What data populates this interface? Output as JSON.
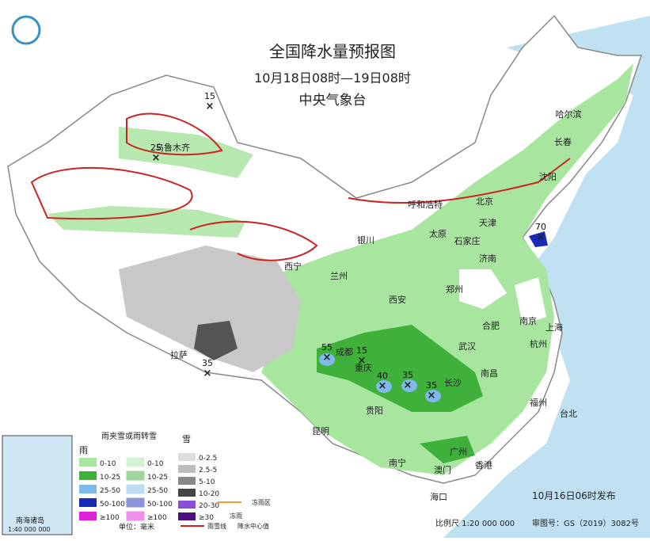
{
  "header": {
    "title": "全国降水量预报图",
    "period": "10月18日08时—19日08时",
    "org": "中央气象台"
  },
  "cities": [
    "乌鲁木齐",
    "哈尔滨",
    "长春",
    "沈阳",
    "呼和浩特",
    "北京",
    "天津",
    "太原",
    "石家庄",
    "济南",
    "银川",
    "西宁",
    "兰州",
    "西安",
    "郑州",
    "合肥",
    "南京",
    "上海",
    "杭州",
    "武汉",
    "成都",
    "重庆",
    "长沙",
    "南昌",
    "贵阳",
    "福州",
    "台北",
    "拉萨",
    "昆明",
    "南宁",
    "广州",
    "澳门",
    "香港",
    "海口"
  ],
  "centers": [
    "15",
    "25",
    "55",
    "15",
    "40",
    "35",
    "35",
    "35",
    "70"
  ],
  "legend": {
    "rain": "雨",
    "mix": "雨夹雪或雨转雪",
    "snow": "雪",
    "rain_levels": [
      "0-10",
      "10-25",
      "25-50",
      "50-100",
      "≥100"
    ],
    "mix_levels": [
      "0-10",
      "10-25",
      "25-50",
      "50-100",
      "≥100"
    ],
    "snow_levels": [
      "0-2.5",
      "2.5-5",
      "5-10",
      "10-20",
      "20-30",
      "≥30"
    ],
    "unit": "单位：毫米",
    "freezing_area": "冻雨区",
    "freezing": "冻雨",
    "snow_line": "雨雪线",
    "center": "降水中心值"
  },
  "inset": {
    "label": "南海诸岛",
    "scale": "1:40 000 000"
  },
  "footer": {
    "issued": "10月16日06时发布",
    "scale": "比例尺 1:20 000 000",
    "review": "审图号：GS（2019）3082号"
  }
}
